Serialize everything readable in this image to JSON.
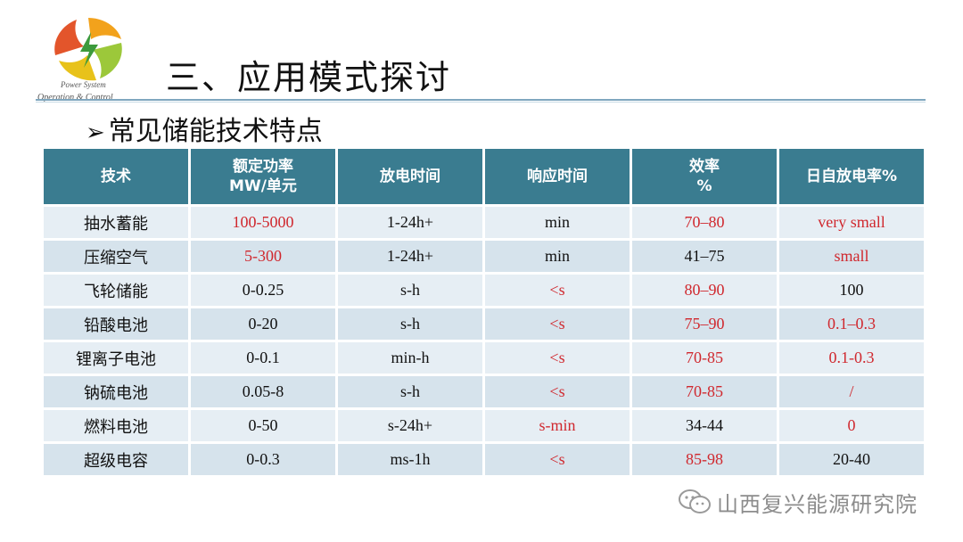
{
  "logo": {
    "line1": "Power System",
    "line2": "Operation & Control"
  },
  "title": "三、应用模式探讨",
  "subtitle": "常见储能技术特点",
  "table": {
    "headers": [
      [
        "技术"
      ],
      [
        "额定功率",
        "MW/单元"
      ],
      [
        "放电时间"
      ],
      [
        "响应时间"
      ],
      [
        "效率",
        "%"
      ],
      [
        "日自放电率%"
      ]
    ],
    "rows": [
      {
        "cells": [
          "抽水蓄能",
          "100-5000",
          "1-24h+",
          "min",
          "70–80",
          "very small"
        ],
        "red": [
          1,
          4,
          5
        ]
      },
      {
        "cells": [
          "压缩空气",
          "5-300",
          "1-24h+",
          "min",
          "41–75",
          "small"
        ],
        "red": [
          1,
          5
        ]
      },
      {
        "cells": [
          "飞轮储能",
          "0-0.25",
          "s-h",
          "<s",
          "80–90",
          "100"
        ],
        "red": [
          3,
          4
        ]
      },
      {
        "cells": [
          "铅酸电池",
          "0-20",
          "s-h",
          "<s",
          "75–90",
          "0.1–0.3"
        ],
        "red": [
          3,
          4,
          5
        ]
      },
      {
        "cells": [
          "锂离子电池",
          "0-0.1",
          "min-h",
          "<s",
          "70-85",
          "0.1-0.3"
        ],
        "red": [
          3,
          4,
          5
        ]
      },
      {
        "cells": [
          "钠硫电池",
          "0.05-8",
          "s-h",
          "<s",
          "70-85",
          "/"
        ],
        "red": [
          3,
          4,
          5
        ]
      },
      {
        "cells": [
          "燃料电池",
          "0-50",
          "s-24h+",
          "s-min",
          "34-44",
          "0"
        ],
        "red": [
          3,
          5
        ]
      },
      {
        "cells": [
          "超级电容",
          "0-0.3",
          "ms-1h",
          "<s",
          "85-98",
          "20-40"
        ],
        "red": [
          3,
          4
        ]
      }
    ]
  },
  "colors": {
    "header_bg": "#3a7c90",
    "row_bg": "#d6e3ec",
    "highlight_text": "#d0282e"
  },
  "watermark": {
    "icon": "wechat-icon",
    "text": "山西复兴能源研究院"
  }
}
